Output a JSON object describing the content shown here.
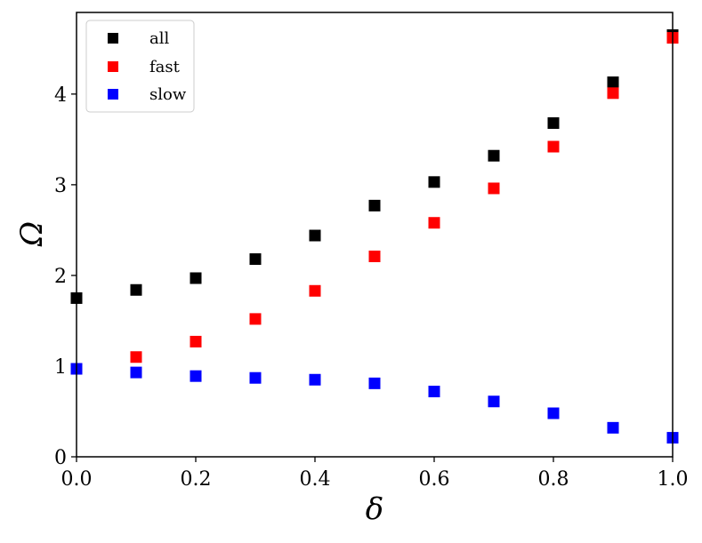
{
  "chart_data": {
    "type": "scatter",
    "xlabel": "δ",
    "ylabel": "Ω",
    "xlim": [
      0.0,
      1.0
    ],
    "ylim": [
      0.0,
      4.9
    ],
    "xticks": [
      0.0,
      0.2,
      0.4,
      0.6,
      0.8,
      1.0
    ],
    "xtick_labels": [
      "0.0",
      "0.2",
      "0.4",
      "0.6",
      "0.8",
      "1.0"
    ],
    "yticks": [
      0,
      1,
      2,
      3,
      4
    ],
    "ytick_labels": [
      "0",
      "1",
      "2",
      "3",
      "4"
    ],
    "grid": false,
    "legend_position": "top-left",
    "x": [
      0.0,
      0.1,
      0.2,
      0.3,
      0.4,
      0.5,
      0.6,
      0.7,
      0.8,
      0.9,
      1.0
    ],
    "series": [
      {
        "name": "all",
        "color": "#000000",
        "values": [
          1.75,
          1.84,
          1.97,
          2.18,
          2.44,
          2.77,
          3.03,
          3.32,
          3.68,
          4.13,
          4.65
        ]
      },
      {
        "name": "fast",
        "color": "#ff0000",
        "values": [
          0.97,
          1.1,
          1.27,
          1.52,
          1.83,
          2.21,
          2.58,
          2.96,
          3.42,
          4.01,
          4.62
        ]
      },
      {
        "name": "slow",
        "color": "#0000ff",
        "values": [
          0.97,
          0.93,
          0.89,
          0.87,
          0.85,
          0.81,
          0.72,
          0.61,
          0.48,
          0.32,
          0.21
        ]
      }
    ]
  }
}
